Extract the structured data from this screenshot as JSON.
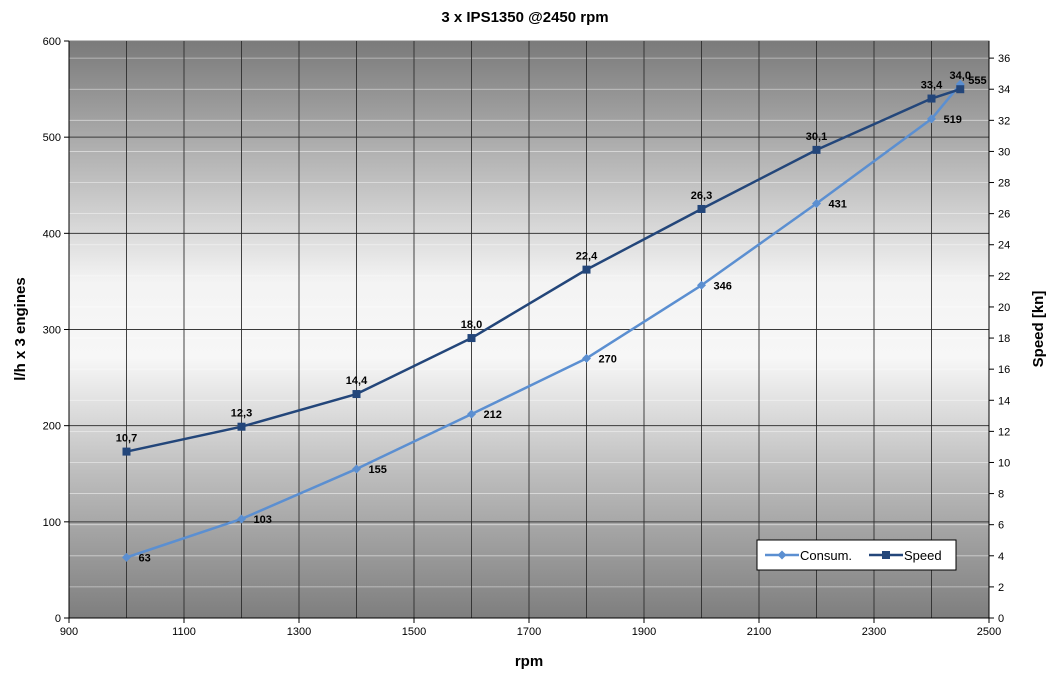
{
  "chart_data": {
    "type": "line",
    "title": "3 x IPS1350 @2450 rpm",
    "xlabel": "rpm",
    "ylabel": "l/h x 3 engines",
    "y2label": "Speed [kn]",
    "xlim": [
      900,
      2500
    ],
    "ylim": [
      0,
      600
    ],
    "y2lim": [
      0,
      37.1
    ],
    "x_ticks": [
      900,
      1100,
      1300,
      1500,
      1700,
      1900,
      2100,
      2300,
      2500
    ],
    "y_ticks": [
      0,
      100,
      200,
      300,
      400,
      500,
      600
    ],
    "y2_ticks": [
      0,
      2,
      4,
      6,
      8,
      10,
      12,
      14,
      16,
      18,
      20,
      22,
      24,
      26,
      28,
      30,
      32,
      34,
      36
    ],
    "grid": true,
    "legend_position": "bottom-right",
    "series": [
      {
        "name": "Consum.",
        "axis": "left",
        "color": "#5b8fd1",
        "marker": "diamond",
        "x": [
          1000,
          1200,
          1400,
          1600,
          1800,
          2000,
          2200,
          2400,
          2450
        ],
        "values": [
          63,
          103,
          155,
          212,
          270,
          346,
          431,
          519,
          555
        ],
        "labels": [
          "63",
          "103",
          "155",
          "212",
          "270",
          "346",
          "431",
          "519",
          "555"
        ]
      },
      {
        "name": "Speed",
        "axis": "right",
        "color": "#23467a",
        "marker": "square",
        "x": [
          1000,
          1200,
          1400,
          1600,
          1800,
          2000,
          2200,
          2400,
          2450
        ],
        "values": [
          10.7,
          12.3,
          14.4,
          18.0,
          22.4,
          26.3,
          30.1,
          33.4,
          34.0
        ],
        "labels": [
          "10,7",
          "12,3",
          "14,4",
          "18,0",
          "22,4",
          "26,3",
          "30,1",
          "33,4",
          "34,0"
        ]
      }
    ]
  }
}
